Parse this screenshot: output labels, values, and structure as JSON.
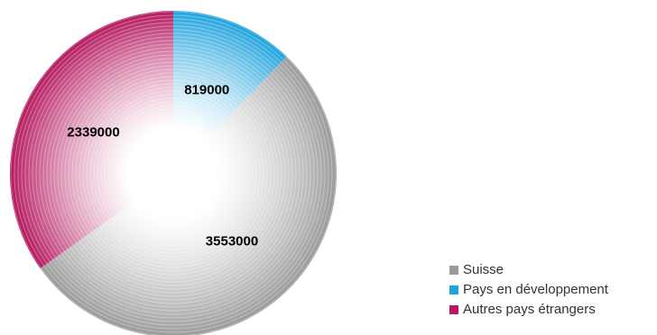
{
  "chart_data": {
    "type": "pie",
    "categories": [
      "Suisse",
      "Pays en développement",
      "Autres pays étrangers"
    ],
    "values": [
      3553000,
      819000,
      2339000
    ],
    "value_labels": [
      "3553000",
      "819000",
      "2339000"
    ],
    "colors": [
      "#9a9a9a",
      "#1fa3dd",
      "#b5195f"
    ],
    "legend_position": "bottom-right",
    "start": "12 o'clock",
    "direction": "clockwise",
    "order": [
      1,
      0,
      2
    ]
  }
}
